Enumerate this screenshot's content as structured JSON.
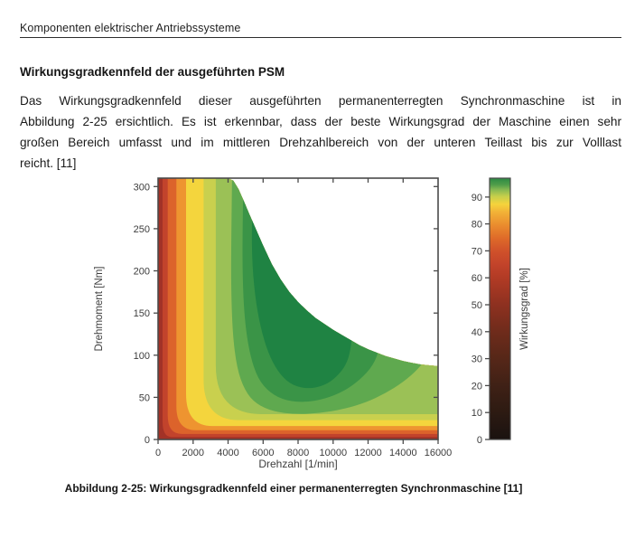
{
  "page": {
    "running_header": "Komponenten elektrischer Antriebssysteme",
    "section_title": "Wirkungsgradkennfeld der ausgeführten PSM",
    "paragraph_lines": [
      "Das Wirkungsgradkennfeld dieser ausgeführten permanenterregten Synchronmaschine ist in",
      "Abbildung 2-25 ersichtlich. Es ist erkennbar, dass der beste Wirkungsgrad der Maschine einen sehr",
      "großen Bereich umfasst und im mittleren Drehzahlbereich von der unteren Teillast bis zur Volllast",
      "reicht. [11]"
    ],
    "figure_caption": "Abbildung 2-25: Wirkungsgradkennfeld einer permanenterregten Synchronmaschine [11]"
  },
  "chart_data": {
    "type": "heatmap",
    "subtype": "filled-contour efficiency map of a permanent-magnet synchronous machine",
    "title": "",
    "xlabel": "Drehzahl [1/min]",
    "ylabel": "Drehmoment [Nm]",
    "xlim": [
      0,
      16000
    ],
    "ylim": [
      0,
      310
    ],
    "xticks": [
      0,
      2000,
      4000,
      6000,
      8000,
      10000,
      12000,
      14000,
      16000
    ],
    "yticks": [
      0,
      50,
      100,
      150,
      200,
      250,
      300
    ],
    "grid": false,
    "axis_color": "#4a4a4a",
    "tick_label_color": "#3d3d3d",
    "envelope_max_torque_curve": [
      [
        0,
        310
      ],
      [
        4000,
        310
      ],
      [
        4300,
        307
      ],
      [
        4600,
        297
      ],
      [
        4900,
        283
      ],
      [
        5200,
        268
      ],
      [
        5600,
        249
      ],
      [
        6000,
        230
      ],
      [
        6500,
        208
      ],
      [
        7000,
        190
      ],
      [
        7500,
        175
      ],
      [
        8000,
        163
      ],
      [
        8500,
        153
      ],
      [
        9000,
        144
      ],
      [
        9500,
        137
      ],
      [
        10000,
        130
      ],
      [
        10500,
        124
      ],
      [
        11000,
        118
      ],
      [
        11500,
        112
      ],
      [
        12000,
        107
      ],
      [
        12500,
        103
      ],
      [
        13000,
        99
      ],
      [
        13500,
        96
      ],
      [
        14000,
        93
      ],
      [
        14500,
        91
      ],
      [
        15000,
        89
      ],
      [
        15500,
        88
      ],
      [
        16000,
        87
      ]
    ],
    "base_band": {
      "level": "< 55 %",
      "color": "#A23227"
    },
    "bands_corner": [
      {
        "level": "55-65 %",
        "color": "#C2432C",
        "left_n": 260,
        "bottom_T": 3,
        "corner_dT": 18,
        "corner_dN": 500
      },
      {
        "level": "65-72 %",
        "color": "#DC632B",
        "left_n": 550,
        "bottom_T": 6.5,
        "corner_dT": 22,
        "corner_dN": 800
      },
      {
        "level": "72-80 %",
        "color": "#EE9430",
        "left_n": 1050,
        "bottom_T": 11,
        "corner_dT": 28,
        "corner_dN": 1100
      },
      {
        "level": "80-86 %",
        "color": "#F4D53D",
        "left_n": 1600,
        "bottom_T": 16,
        "corner_dT": 38,
        "corner_dN": 1500
      },
      {
        "level": "86-89 %",
        "color": "#C9D04E",
        "left_n": 2600,
        "bottom_T": 23,
        "corner_dT": 48,
        "corner_dN": 2000
      },
      {
        "level": "89-91 %",
        "color": "#9BC156",
        "left_n": 3300,
        "bottom_T": 30,
        "corner_dT": 58,
        "corner_dN": 2600
      }
    ],
    "bands_blob": [
      {
        "level": "91-93 %",
        "color": "#5FA94F",
        "points": [
          [
            4250,
            340
          ],
          [
            4180,
            240
          ],
          [
            4170,
            180
          ],
          [
            4260,
            125
          ],
          [
            4500,
            85
          ],
          [
            4950,
            58
          ],
          [
            5600,
            42
          ],
          [
            6600,
            33
          ],
          [
            7800,
            30
          ],
          [
            9200,
            31
          ],
          [
            10600,
            36
          ],
          [
            11900,
            44
          ],
          [
            13000,
            55
          ],
          [
            14000,
            68
          ],
          [
            14900,
            84
          ],
          [
            15500,
            102
          ],
          [
            15650,
            340
          ]
        ]
      },
      {
        "level": "93-95 %",
        "color": "#3A9447",
        "points": [
          [
            4900,
            340
          ],
          [
            4830,
            260
          ],
          [
            4820,
            195
          ],
          [
            4950,
            140
          ],
          [
            5250,
            100
          ],
          [
            5700,
            72
          ],
          [
            6400,
            55
          ],
          [
            7300,
            46
          ],
          [
            8400,
            44
          ],
          [
            9500,
            48
          ],
          [
            10600,
            57
          ],
          [
            11500,
            70
          ],
          [
            12300,
            88
          ],
          [
            12700,
            110
          ],
          [
            12750,
            340
          ]
        ]
      },
      {
        "level": "> 95 %",
        "color": "#1F8343",
        "points": [
          [
            5450,
            340
          ],
          [
            5350,
            260
          ],
          [
            5380,
            205
          ],
          [
            5600,
            160
          ],
          [
            5950,
            125
          ],
          [
            6400,
            97
          ],
          [
            7000,
            76
          ],
          [
            7700,
            64
          ],
          [
            8600,
            60
          ],
          [
            9500,
            64
          ],
          [
            10200,
            74
          ],
          [
            10800,
            90
          ],
          [
            11050,
            112
          ],
          [
            11100,
            135
          ],
          [
            11100,
            340
          ]
        ]
      }
    ],
    "colorbar": {
      "label": "Wirkungsgrad [%]",
      "ticks": [
        0,
        10,
        20,
        30,
        40,
        50,
        60,
        70,
        80,
        90
      ],
      "vmin": 0,
      "vmax": 97,
      "gradient_stops": [
        [
          0.0,
          "#1A1210"
        ],
        [
          0.1,
          "#2C1A12"
        ],
        [
          0.21,
          "#402116"
        ],
        [
          0.31,
          "#562718"
        ],
        [
          0.41,
          "#6E2B1B"
        ],
        [
          0.52,
          "#8F3120"
        ],
        [
          0.62,
          "#B23B25"
        ],
        [
          0.67,
          "#C2432A"
        ],
        [
          0.72,
          "#D0512A"
        ],
        [
          0.77,
          "#DE6A29"
        ],
        [
          0.82,
          "#EA8C2E"
        ],
        [
          0.87,
          "#F2B237"
        ],
        [
          0.9,
          "#F5D33C"
        ],
        [
          0.93,
          "#C6CF4B"
        ],
        [
          0.955,
          "#8ABA52"
        ],
        [
          0.975,
          "#4F9D4A"
        ],
        [
          1.0,
          "#2B8A43"
        ]
      ]
    }
  }
}
